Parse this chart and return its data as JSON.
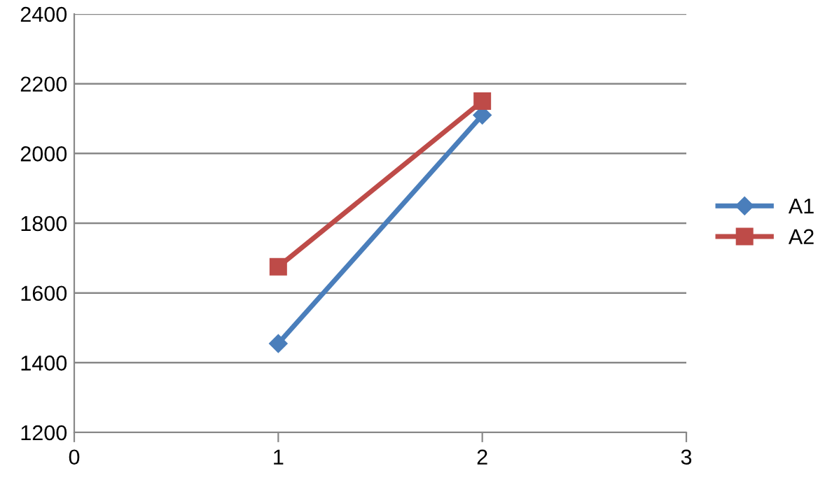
{
  "chart_data": {
    "type": "line",
    "x": [
      1,
      2
    ],
    "series": [
      {
        "name": "A1",
        "color": "#4a7ebb",
        "marker": "diamond",
        "values": [
          1455,
          2110
        ]
      },
      {
        "name": "A2",
        "color": "#be4b48",
        "marker": "square",
        "values": [
          1675,
          2150
        ]
      }
    ],
    "xlim": [
      0,
      3
    ],
    "xticks": [
      0,
      1,
      2,
      3
    ],
    "ylim": [
      1200,
      2400
    ],
    "yticks": [
      1200,
      1400,
      1600,
      1800,
      2000,
      2200,
      2400
    ],
    "grid": "y",
    "legend": "right"
  }
}
